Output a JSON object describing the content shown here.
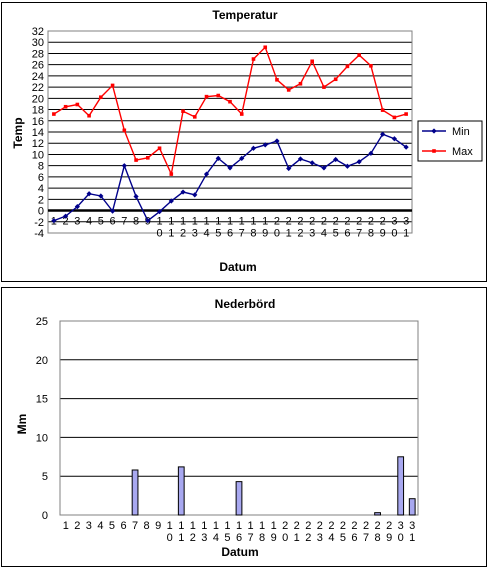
{
  "chart_data": [
    {
      "type": "line",
      "title": "Temperatur",
      "xlabel": "Datum",
      "ylabel": "Temp",
      "ylim": [
        -4,
        32
      ],
      "yticks": [
        -4,
        -2,
        0,
        2,
        4,
        6,
        8,
        10,
        12,
        14,
        16,
        18,
        20,
        22,
        24,
        26,
        28,
        30,
        32
      ],
      "x": [
        1,
        2,
        3,
        4,
        5,
        6,
        7,
        8,
        9,
        10,
        11,
        12,
        13,
        14,
        15,
        16,
        17,
        18,
        19,
        20,
        21,
        22,
        23,
        24,
        25,
        26,
        27,
        28,
        29,
        30,
        31
      ],
      "grid": true,
      "legend_placement": "right",
      "series": [
        {
          "name": "Min",
          "color": "#00008B",
          "values": [
            -1.8,
            -1.0,
            0.7,
            3.0,
            2.6,
            -0.1,
            8.0,
            2.5,
            -1.8,
            -0.2,
            1.7,
            3.3,
            2.8,
            6.5,
            9.3,
            7.6,
            9.3,
            11.1,
            11.7,
            12.4,
            7.5,
            9.2,
            8.5,
            7.6,
            9.1,
            7.9,
            8.7,
            10.2,
            13.6,
            12.8,
            11.3
          ]
        },
        {
          "name": "Max",
          "color": "#FF0000",
          "values": [
            17.2,
            18.5,
            18.9,
            16.9,
            20.2,
            22.3,
            14.3,
            9.0,
            9.4,
            11.1,
            6.5,
            17.7,
            16.7,
            20.3,
            20.5,
            19.4,
            17.2,
            27.0,
            29.1,
            23.3,
            21.5,
            22.6,
            26.6,
            22.0,
            23.4,
            25.7,
            27.7,
            25.8,
            17.9,
            16.6,
            17.2
          ]
        }
      ]
    },
    {
      "type": "bar",
      "title": "Nederbörd",
      "xlabel": "Datum",
      "ylabel": "Mm",
      "ylim": [
        0,
        25
      ],
      "yticks": [
        0,
        5,
        10,
        15,
        20,
        25
      ],
      "categories": [
        "1",
        "2",
        "3",
        "4",
        "5",
        "6",
        "7",
        "8",
        "9",
        "10",
        "11",
        "12",
        "13",
        "14",
        "15",
        "16",
        "17",
        "18",
        "19",
        "20",
        "21",
        "22",
        "23",
        "24",
        "25",
        "26",
        "27",
        "28",
        "29",
        "30",
        "31"
      ],
      "values": [
        0,
        0,
        0,
        0,
        0,
        0,
        5.8,
        0,
        0,
        0,
        6.2,
        0,
        0,
        0,
        0,
        4.3,
        0,
        0,
        0,
        0,
        0,
        0,
        0,
        0,
        0,
        0,
        0,
        0.3,
        0,
        7.5,
        2.1
      ],
      "grid": true,
      "bar_color": "#A8A8F0"
    }
  ]
}
